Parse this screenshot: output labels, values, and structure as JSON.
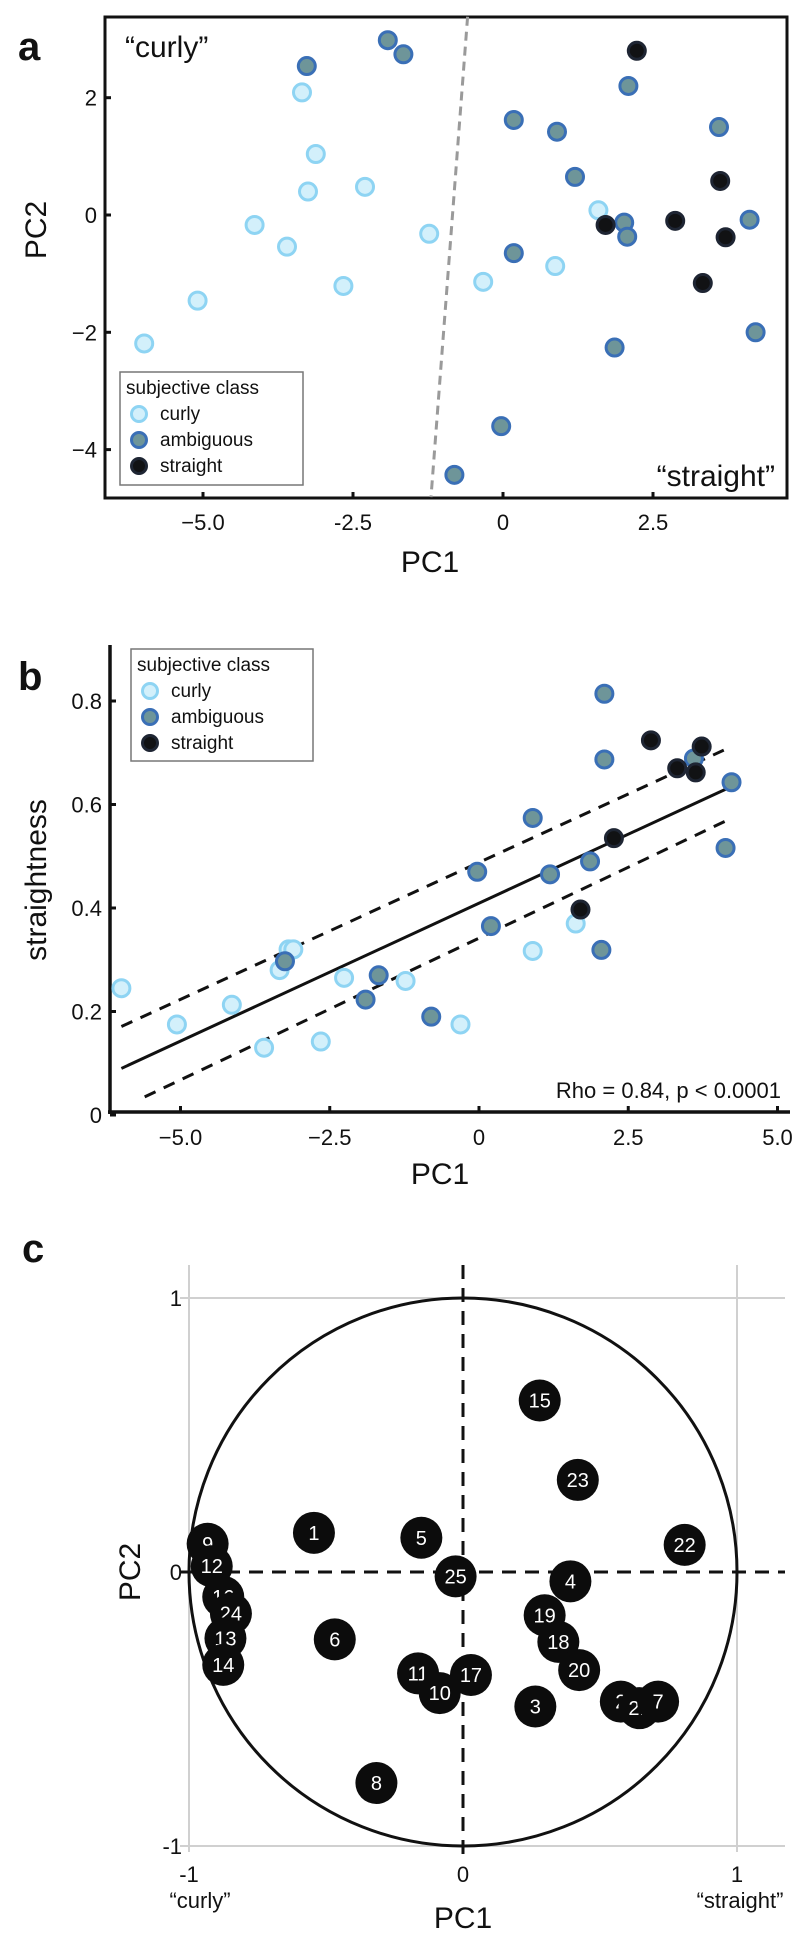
{
  "colors": {
    "curly_fill": "#d3f0fb",
    "curly_stroke": "#8ed4f3",
    "ambiguous_fill": "#6e9599",
    "ambiguous_stroke": "#3a6fb6",
    "straight_fill": "#111214",
    "straight_stroke": "#1e2533"
  },
  "chart_data": [
    {
      "type": "scatter",
      "panel_label": "a",
      "xlabel": "PC1",
      "ylabel": "PC2",
      "xlim": [
        -6.63,
        4.73
      ],
      "ylim": [
        -4.81,
        3.38
      ],
      "xticks": [
        -5,
        -2.5,
        0,
        2.5
      ],
      "xtick_labels": [
        "−5.0",
        "-2.5",
        "0",
        "2.5"
      ],
      "yticks": [
        2,
        0,
        -2,
        -4
      ],
      "ytick_labels": [
        "2",
        "0",
        "−2",
        "−4"
      ],
      "annotations": [
        "“curly”",
        "“straight”"
      ],
      "divider": [
        [
          -0.59,
          3.38
        ],
        [
          -1.2,
          -4.81
        ]
      ],
      "legend": {
        "title": "subjective class",
        "position": "bottom-left",
        "entries": [
          "curly",
          "ambiguous",
          "straight"
        ]
      },
      "series": [
        {
          "name": "curly",
          "points": [
            [
              -5.98,
              -2.19
            ],
            [
              -5.09,
              -1.46
            ],
            [
              -4.14,
              -0.17
            ],
            [
              -3.6,
              -0.54
            ],
            [
              -3.35,
              2.09
            ],
            [
              -3.25,
              0.4
            ],
            [
              -3.12,
              1.04
            ],
            [
              -2.66,
              -1.21
            ],
            [
              -2.3,
              0.48
            ],
            [
              -1.23,
              -0.32
            ],
            [
              -0.33,
              -1.14
            ],
            [
              0.87,
              -0.87
            ],
            [
              1.59,
              0.08
            ]
          ]
        },
        {
          "name": "ambiguous",
          "points": [
            [
              -3.27,
              2.54
            ],
            [
              -1.92,
              2.98
            ],
            [
              -1.66,
              2.74
            ],
            [
              0.18,
              1.62
            ],
            [
              0.18,
              -0.65
            ],
            [
              0.9,
              1.42
            ],
            [
              1.2,
              0.65
            ],
            [
              2.09,
              2.2
            ],
            [
              2.02,
              -0.13
            ],
            [
              2.07,
              -0.37
            ],
            [
              1.86,
              -2.26
            ],
            [
              3.6,
              1.5
            ],
            [
              4.11,
              -0.08
            ],
            [
              4.21,
              -2.0
            ],
            [
              -0.03,
              -3.6
            ],
            [
              -0.81,
              -4.43
            ]
          ]
        },
        {
          "name": "straight",
          "points": [
            [
              2.23,
              2.8
            ],
            [
              1.71,
              -0.17
            ],
            [
              2.87,
              -0.1
            ],
            [
              3.62,
              0.58
            ],
            [
              3.71,
              -0.38
            ],
            [
              3.33,
              -1.16
            ]
          ]
        }
      ]
    },
    {
      "type": "scatter",
      "panel_label": "b",
      "xlabel": "PC1",
      "ylabel": "straightness",
      "xlim": [
        -6.17,
        5.2
      ],
      "ylim": [
        0,
        0.9
      ],
      "xticks": [
        -5,
        -2.5,
        0,
        2.5,
        5
      ],
      "xtick_labels": [
        "−5.0",
        "−2.5",
        "0",
        "2.5",
        "5.0"
      ],
      "yticks": [
        0.8,
        0.6,
        0.4,
        0.2,
        0
      ],
      "ytick_labels": [
        "0.8",
        "0.6",
        "0.4",
        "0.2",
        "0"
      ],
      "annotation": "Rho = 0.84, p < 0.0001",
      "fit": {
        "line": [
          [
            -5.99,
            0.09
          ],
          [
            4.14,
            0.63
          ]
        ],
        "ci_upper": [
          [
            -5.99,
            0.171
          ],
          [
            4.1,
            0.705
          ]
        ],
        "ci_lower": [
          [
            -5.6,
            0.035
          ],
          [
            4.24,
            0.574
          ]
        ]
      },
      "legend": {
        "title": "subjective class",
        "position": "top-left",
        "entries": [
          "curly",
          "ambiguous",
          "straight"
        ]
      },
      "series": [
        {
          "name": "curly",
          "points": [
            [
              1.62,
              0.37
            ],
            [
              0.9,
              0.317
            ],
            [
              -3.19,
              0.32
            ],
            [
              -3.11,
              0.32
            ],
            [
              -3.34,
              0.28
            ],
            [
              -2.26,
              0.265
            ],
            [
              -1.23,
              0.259
            ],
            [
              -5.99,
              0.245
            ],
            [
              -5.06,
              0.175
            ],
            [
              -4.14,
              0.213
            ],
            [
              -3.6,
              0.13
            ],
            [
              -2.65,
              0.142
            ],
            [
              -0.31,
              0.175
            ]
          ]
        },
        {
          "name": "ambiguous",
          "points": [
            [
              2.1,
              0.814
            ],
            [
              2.1,
              0.687
            ],
            [
              0.9,
              0.574
            ],
            [
              -0.03,
              0.47
            ],
            [
              1.19,
              0.465
            ],
            [
              1.86,
              0.49
            ],
            [
              4.23,
              0.643
            ],
            [
              4.13,
              0.516
            ],
            [
              2.05,
              0.319
            ],
            [
              0.2,
              0.365
            ],
            [
              3.6,
              0.689
            ],
            [
              -3.25,
              0.297
            ],
            [
              -1.68,
              0.27
            ],
            [
              -1.9,
              0.223
            ],
            [
              -0.8,
              0.19
            ]
          ]
        },
        {
          "name": "straight",
          "points": [
            [
              2.88,
              0.724
            ],
            [
              3.73,
              0.712
            ],
            [
              3.32,
              0.67
            ],
            [
              3.63,
              0.662
            ],
            [
              2.26,
              0.535
            ],
            [
              1.7,
              0.397
            ]
          ]
        }
      ]
    },
    {
      "type": "scatter",
      "panel_label": "c",
      "xlabel": "PC1",
      "ylabel": "PC2",
      "xlim": [
        -1,
        1
      ],
      "ylim": [
        -1,
        1
      ],
      "xticks": [
        -1,
        0,
        1
      ],
      "xtick_labels": [
        "-1",
        "0",
        "1"
      ],
      "yticks": [
        1,
        0,
        -1
      ],
      "ytick_labels": [
        "1",
        "0",
        "-1"
      ],
      "x_end_labels": [
        "“curly”",
        "“straight”"
      ],
      "unit_circle": true,
      "points": [
        {
          "label": "1",
          "x": -0.544,
          "y": 0.143
        },
        {
          "label": "5",
          "x": -0.152,
          "y": 0.125
        },
        {
          "label": "15",
          "x": 0.28,
          "y": 0.626
        },
        {
          "label": "23",
          "x": 0.419,
          "y": 0.336
        },
        {
          "label": "22",
          "x": 0.809,
          "y": 0.099
        },
        {
          "label": "9",
          "x": -0.932,
          "y": 0.103
        },
        {
          "label": "12",
          "x": -0.917,
          "y": 0.021
        },
        {
          "label": "16",
          "x": -0.875,
          "y": -0.091
        },
        {
          "label": "24",
          "x": -0.847,
          "y": -0.152
        },
        {
          "label": "13",
          "x": -0.867,
          "y": -0.242
        },
        {
          "label": "14",
          "x": -0.875,
          "y": -0.339
        },
        {
          "label": "6",
          "x": -0.468,
          "y": -0.246
        },
        {
          "label": "11",
          "x": -0.164,
          "y": -0.37
        },
        {
          "label": "10",
          "x": -0.085,
          "y": -0.442
        },
        {
          "label": "17",
          "x": 0.029,
          "y": -0.376
        },
        {
          "label": "25",
          "x": -0.027,
          "y": -0.016
        },
        {
          "label": "4",
          "x": 0.392,
          "y": -0.034
        },
        {
          "label": "19",
          "x": 0.298,
          "y": -0.158
        },
        {
          "label": "18",
          "x": 0.348,
          "y": -0.255
        },
        {
          "label": "20",
          "x": 0.424,
          "y": -0.358
        },
        {
          "label": "3",
          "x": 0.264,
          "y": -0.491
        },
        {
          "label": "2",
          "x": 0.576,
          "y": -0.473
        },
        {
          "label": "21",
          "x": 0.644,
          "y": -0.497
        },
        {
          "label": "7",
          "x": 0.712,
          "y": -0.473
        },
        {
          "label": "8",
          "x": -0.316,
          "y": -0.77
        }
      ]
    }
  ]
}
